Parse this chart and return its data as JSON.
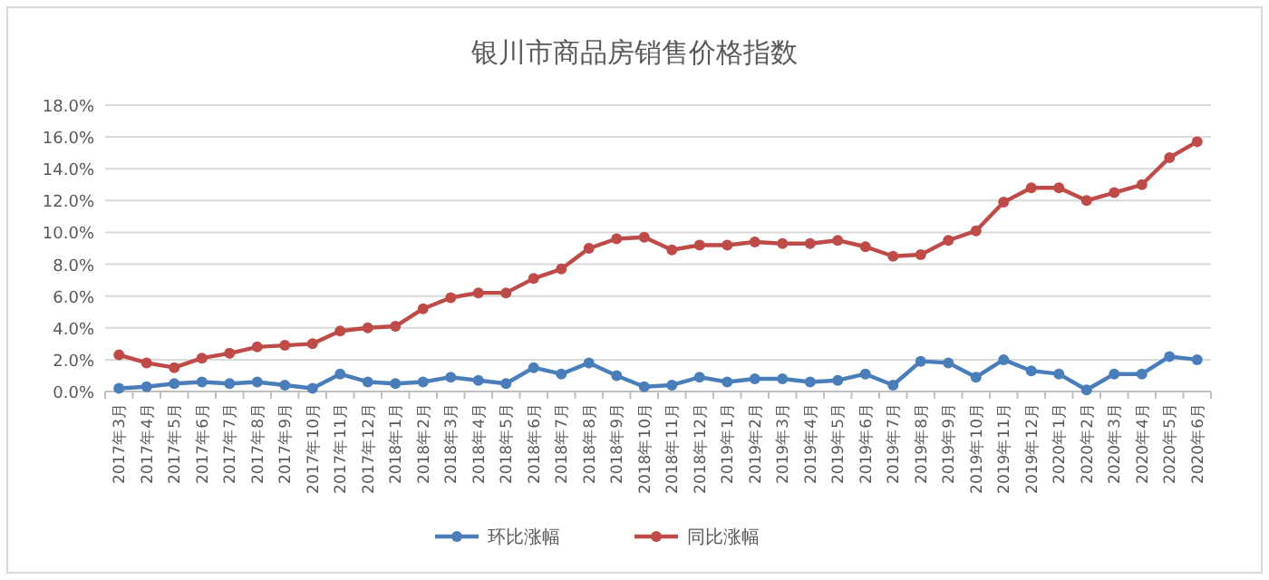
{
  "chart_data": {
    "type": "line",
    "title": "银川市商品房销售价格指数",
    "categories": [
      "2017年3月",
      "2017年4月",
      "2017年5月",
      "2017年6月",
      "2017年7月",
      "2017年8月",
      "2017年9月",
      "2017年10月",
      "2017年11月",
      "2017年12月",
      "2018年1月",
      "2018年2月",
      "2018年3月",
      "2018年4月",
      "2018年5月",
      "2018年6月",
      "2018年7月",
      "2018年8月",
      "2018年9月",
      "2018年10月",
      "2018年11月",
      "2018年12月",
      "2019年1月",
      "2019年2月",
      "2019年3月",
      "2019年4月",
      "2019年5月",
      "2019年6月",
      "2019年7月",
      "2019年8月",
      "2019年9月",
      "2019年10月",
      "2019年11月",
      "2019年12月",
      "2020年1月",
      "2020年2月",
      "2020年3月",
      "2020年4月",
      "2020年5月",
      "2020年6月"
    ],
    "series": [
      {
        "name": "环比涨幅",
        "color": "#4a7ebb",
        "values": [
          0.2,
          0.3,
          0.5,
          0.6,
          0.5,
          0.6,
          0.4,
          0.2,
          1.1,
          0.6,
          0.5,
          0.6,
          0.9,
          0.7,
          0.5,
          1.5,
          1.1,
          1.8,
          1.0,
          0.3,
          0.4,
          0.9,
          0.6,
          0.8,
          0.8,
          0.6,
          0.7,
          1.1,
          0.4,
          1.9,
          1.8,
          0.9,
          2.0,
          1.3,
          1.1,
          0.1,
          1.1,
          1.1,
          2.2,
          2.0
        ]
      },
      {
        "name": "同比涨幅",
        "color": "#be4b48",
        "values": [
          2.3,
          1.8,
          1.5,
          2.1,
          2.4,
          2.8,
          2.9,
          3.0,
          3.8,
          4.0,
          4.1,
          5.2,
          5.9,
          6.2,
          6.2,
          7.1,
          7.7,
          9.0,
          9.6,
          9.7,
          8.9,
          9.2,
          9.2,
          9.4,
          9.3,
          9.3,
          9.5,
          9.1,
          8.5,
          8.6,
          9.5,
          10.1,
          11.9,
          12.8,
          12.8,
          12.0,
          12.5,
          13.0,
          14.7,
          15.7
        ]
      }
    ],
    "ylim": [
      0,
      18
    ],
    "yticks": [
      {
        "value": 0,
        "label": "0.0%"
      },
      {
        "value": 2,
        "label": "2.0%"
      },
      {
        "value": 4,
        "label": "4.0%"
      },
      {
        "value": 6,
        "label": "6.0%"
      },
      {
        "value": 8,
        "label": "8.0%"
      },
      {
        "value": 10,
        "label": "10.0%"
      },
      {
        "value": 12,
        "label": "12.0%"
      },
      {
        "value": 14,
        "label": "14.0%"
      },
      {
        "value": 16,
        "label": "16.0%"
      },
      {
        "value": 18,
        "label": "18.0%"
      }
    ],
    "grid": "y",
    "legend": "bottom",
    "marker": "circle",
    "line_style": "solid"
  }
}
